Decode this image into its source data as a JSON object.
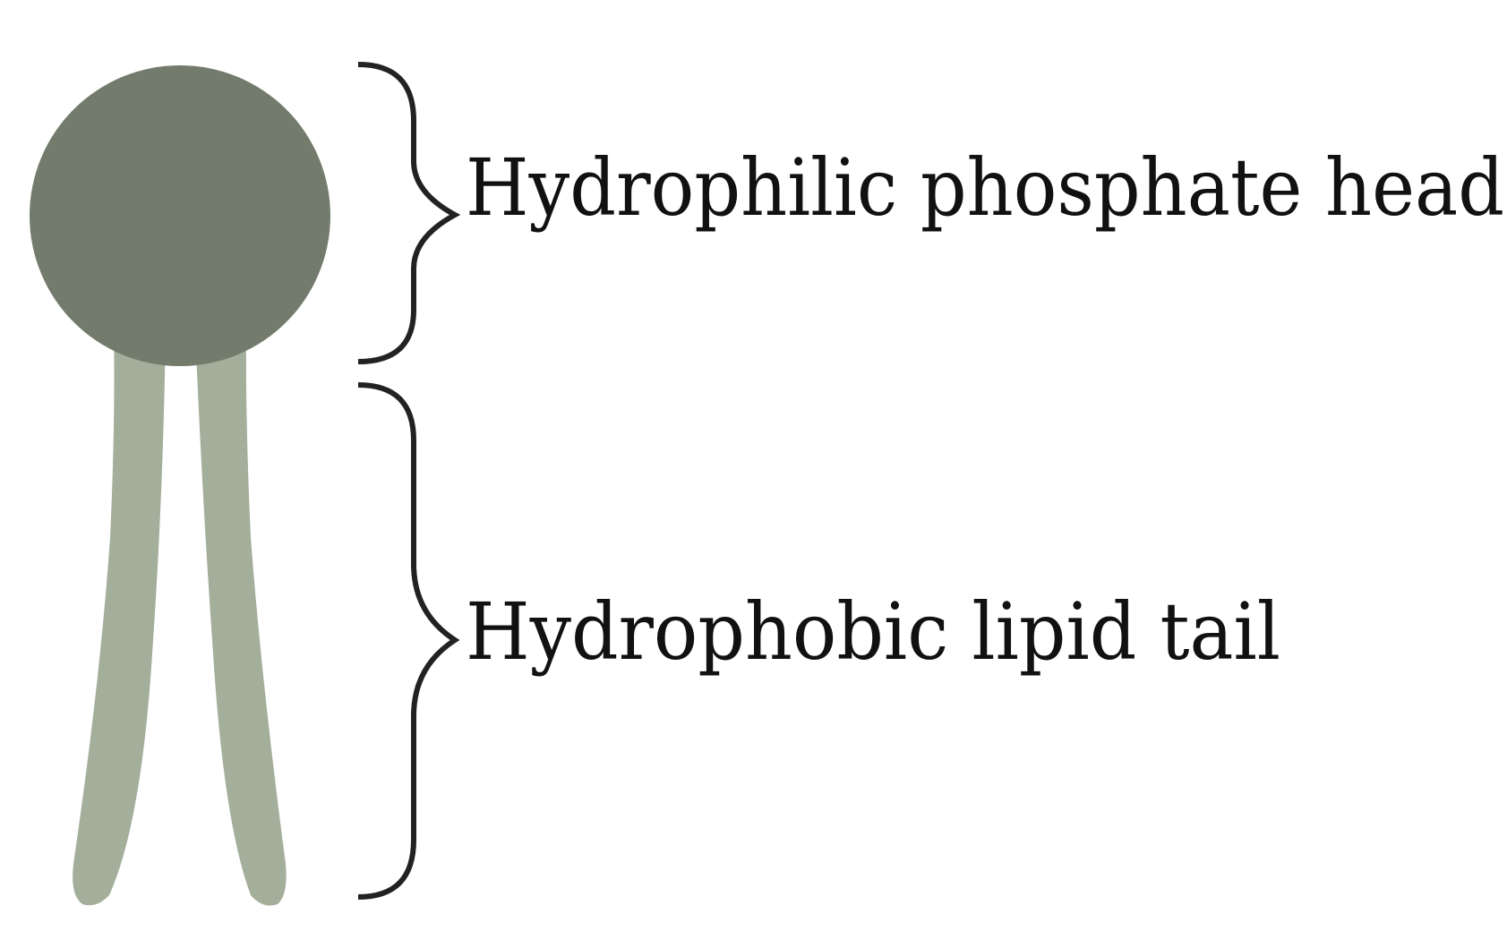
{
  "labels": {
    "head": "Hydrophilic phosphate head",
    "tail": "Hydrophobic lipid tail"
  },
  "colors": {
    "head_fill": "#737C6C",
    "tail_fill": "#A3AE9B",
    "brace_stroke": "#222222",
    "text": "#111111"
  }
}
